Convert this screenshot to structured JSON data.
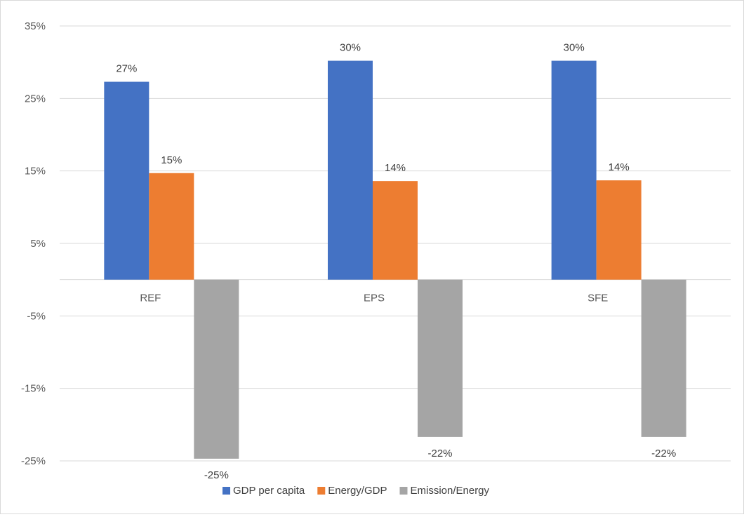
{
  "chart_data": {
    "type": "bar",
    "categories": [
      "REF",
      "EPS",
      "SFE"
    ],
    "series": [
      {
        "name": "GDP per capita",
        "color": "#4472C4",
        "values": [
          27.3,
          30.2,
          30.2
        ],
        "labels": [
          "27%",
          "30%",
          "30%"
        ]
      },
      {
        "name": "Energy/GDP",
        "color": "#ED7D31",
        "values": [
          14.7,
          13.6,
          13.7
        ],
        "labels": [
          "15%",
          "14%",
          "14%"
        ]
      },
      {
        "name": "Emission/Energy",
        "color": "#A5A5A5",
        "values": [
          -24.7,
          -21.7,
          -21.7
        ],
        "labels": [
          "-25%",
          "-22%",
          "-22%"
        ]
      }
    ],
    "yticks": [
      "35%",
      "25%",
      "15%",
      "5%",
      "-5%",
      "-15%",
      "-25%"
    ],
    "ylim": [
      -25,
      35
    ],
    "grid": true,
    "legend": "bottom",
    "title": "",
    "xlabel": "",
    "ylabel": ""
  }
}
